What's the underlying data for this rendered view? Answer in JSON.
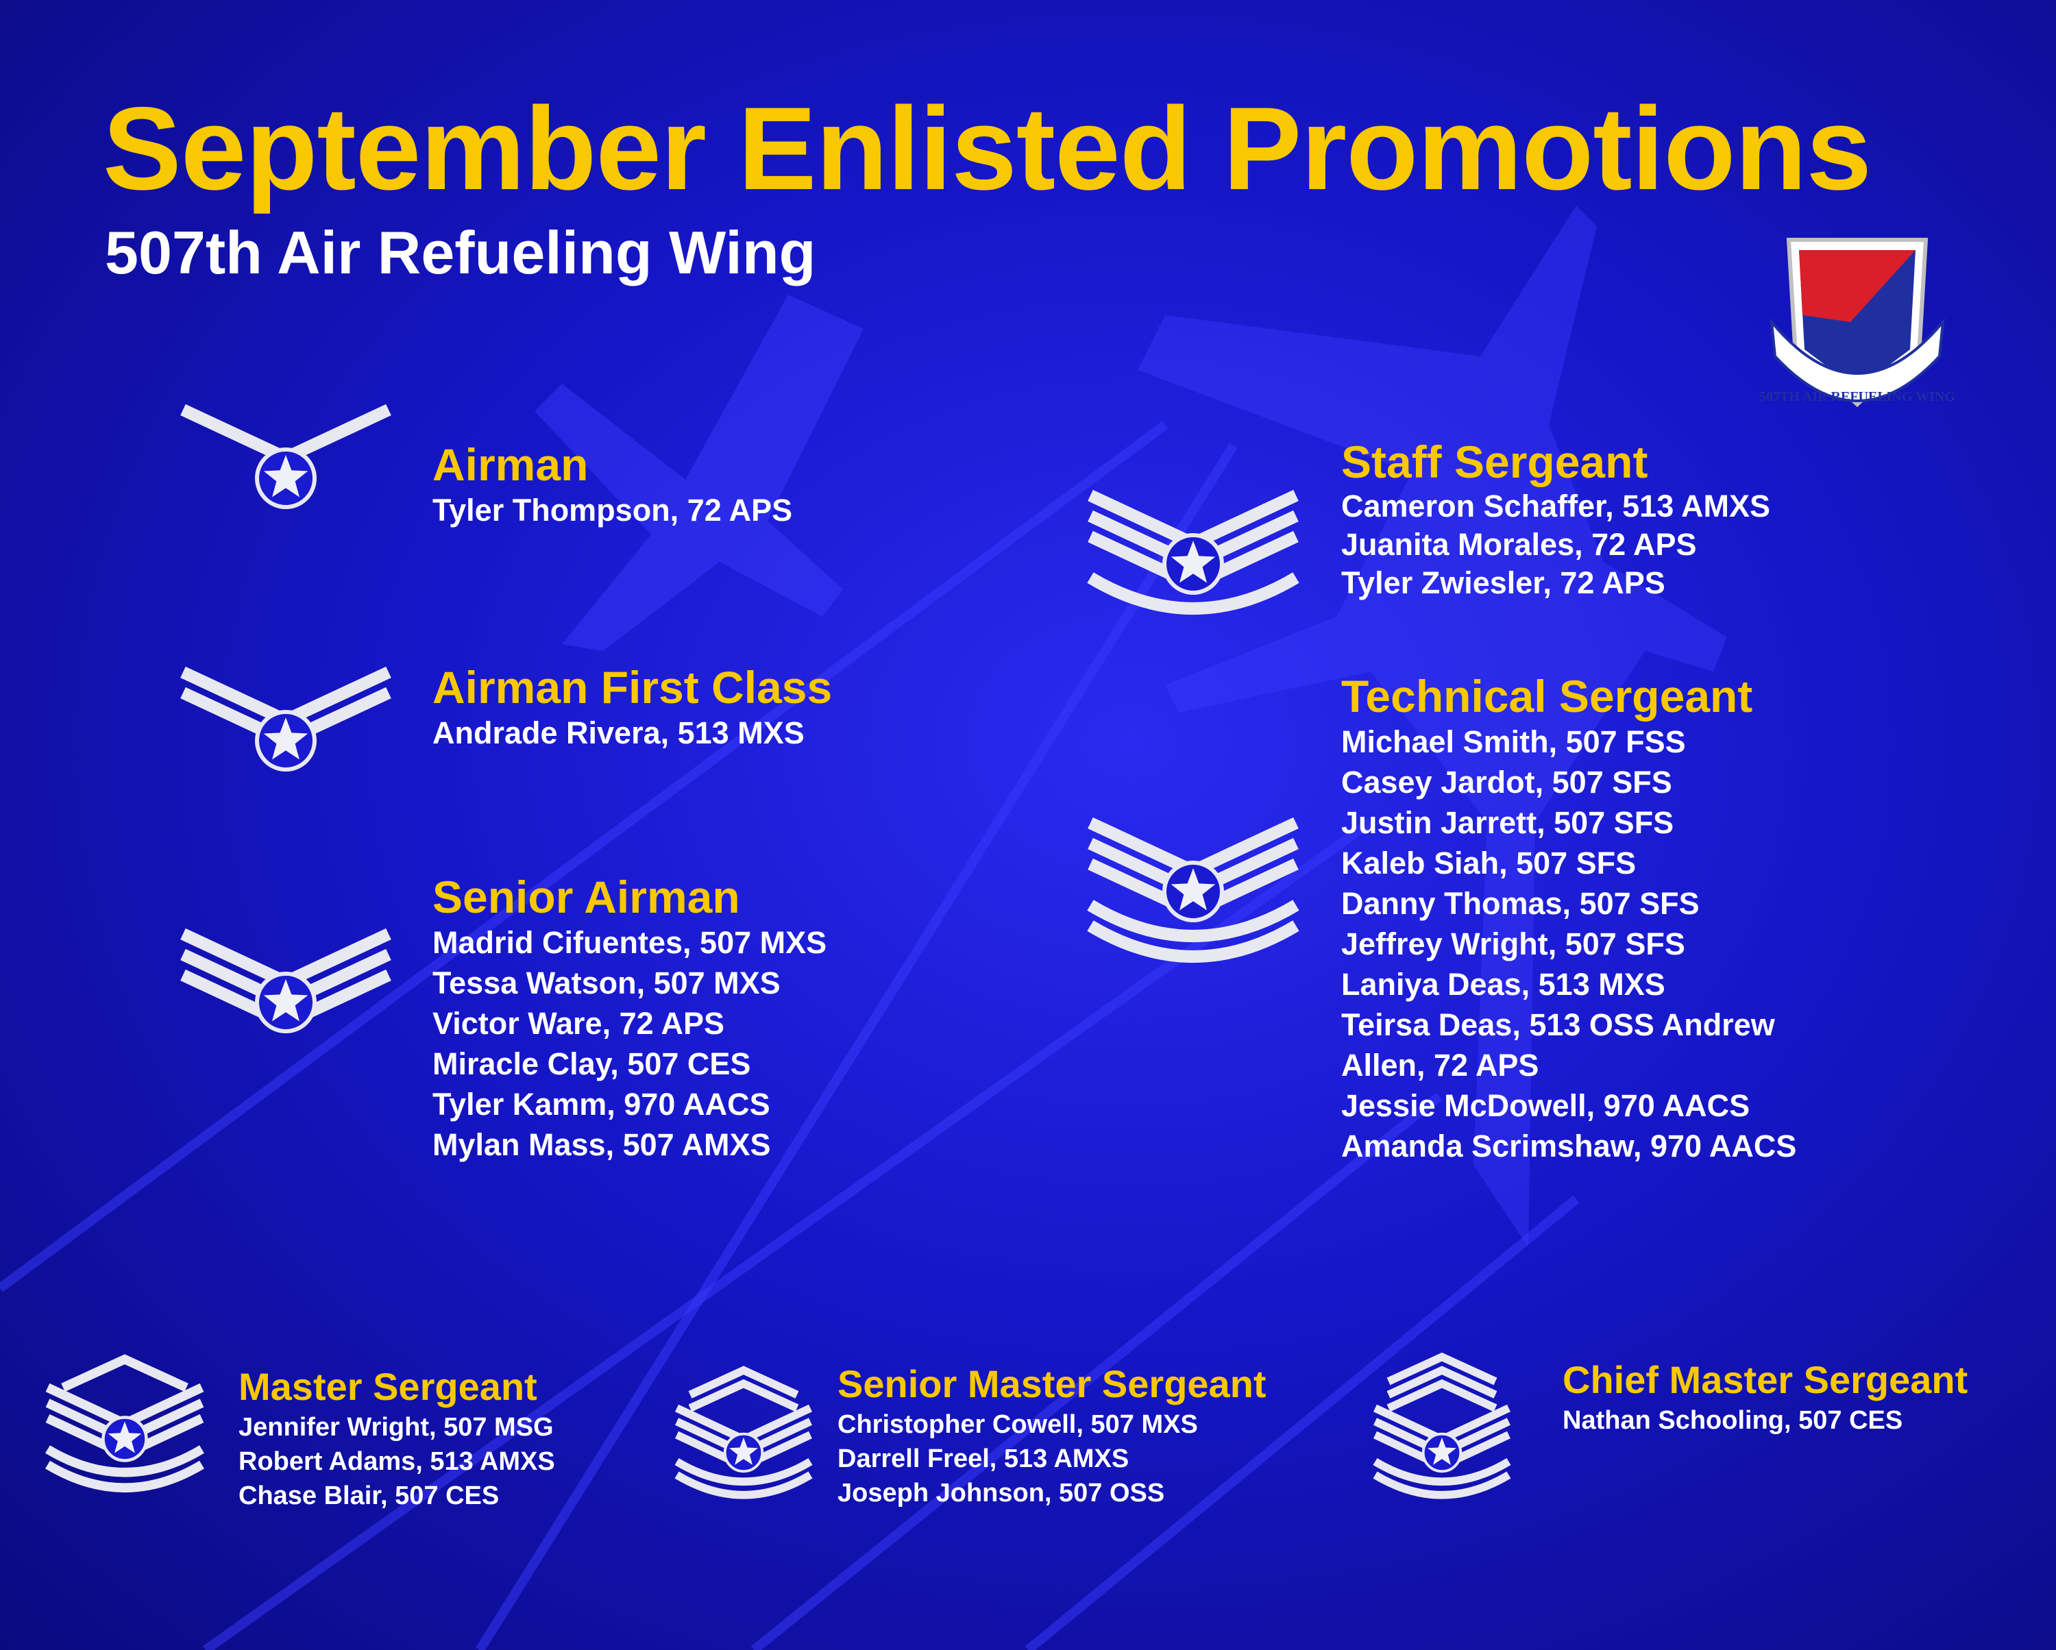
{
  "header": {
    "title": "September Enlisted Promotions",
    "subtitle": "507th Air Refueling Wing"
  },
  "emblem": {
    "text": "507TH AIR REFUELING WING"
  },
  "ranks": [
    {
      "rank": "Airman",
      "names": [
        "Tyler Thompson, 72 APS"
      ]
    },
    {
      "rank": "Airman First Class",
      "names": [
        "Andrade Rivera, 513 MXS"
      ]
    },
    {
      "rank": "Senior Airman",
      "names": [
        "Madrid Cifuentes, 507 MXS",
        "Tessa Watson, 507 MXS",
        "Victor Ware, 72 APS",
        "Miracle Clay, 507 CES",
        "Tyler Kamm, 970 AACS",
        "Mylan Mass, 507 AMXS"
      ]
    },
    {
      "rank": "Staff Sergeant",
      "names": [
        "Cameron Schaffer, 513 AMXS",
        "Juanita Morales, 72 APS",
        "Tyler Zwiesler, 72 APS"
      ]
    },
    {
      "rank": "Technical Sergeant",
      "names": [
        "Michael Smith, 507 FSS",
        "Casey Jardot, 507 SFS",
        "Justin Jarrett, 507 SFS",
        "Kaleb Siah, 507 SFS",
        "Danny Thomas, 507 SFS",
        "Jeffrey Wright, 507 SFS",
        "Laniya Deas, 513 MXS",
        "Teirsa Deas, 513 OSS Andrew",
        "Allen, 72 APS",
        "Jessie McDowell, 970 AACS",
        "Amanda Scrimshaw, 970 AACS"
      ]
    },
    {
      "rank": "Master Sergeant",
      "names": [
        "Jennifer Wright, 507 MSG",
        "Robert Adams, 513 AMXS",
        "Chase Blair, 507 CES"
      ]
    },
    {
      "rank": "Senior Master Sergeant",
      "names": [
        "Christopher Cowell, 507 MXS",
        "Darrell Freel, 513 AMXS",
        "Joseph Johnson, 507 OSS"
      ]
    },
    {
      "rank": "Chief Master Sergeant",
      "names": [
        "Nathan Schooling, 507 CES"
      ]
    }
  ]
}
